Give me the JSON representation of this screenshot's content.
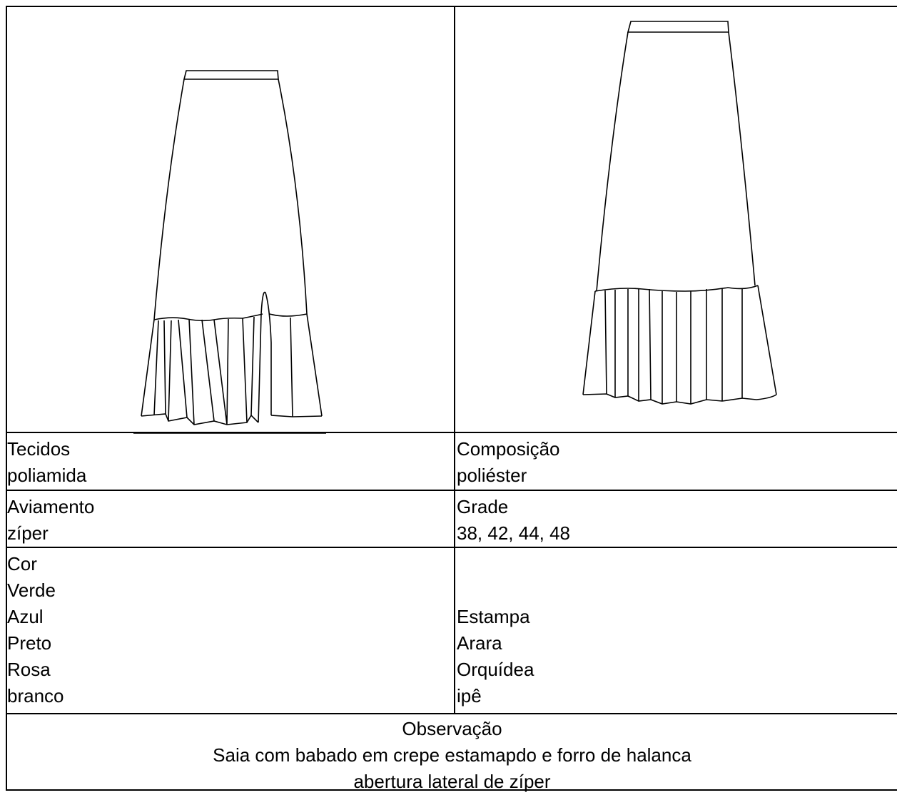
{
  "table": {
    "rows": [
      [
        [
          "Tecidos",
          "poliamida"
        ],
        [
          "Composição",
          "poliéster"
        ]
      ],
      [
        [
          "Aviamento",
          "zíper"
        ],
        [
          "Grade",
          "38, 42, 44, 48"
        ]
      ],
      [
        [
          "Cor",
          "Verde",
          "Azul",
          "Preto",
          "Rosa",
          "branco"
        ],
        [
          "Estampa",
          "Arara",
          "Orquídea",
          "ipê"
        ]
      ]
    ],
    "observation": [
      "Observação",
      "Saia com babado em crepe estamapdo e forro de halanca",
      "abertura lateral de zíper"
    ]
  }
}
